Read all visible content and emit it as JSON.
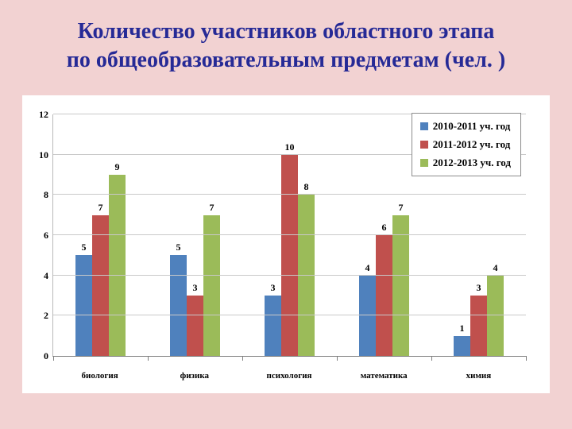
{
  "title": {
    "line1": "Количество участников областного этапа",
    "line2": "по общеобразовательным предметам (чел. )"
  },
  "chart_data": {
    "type": "bar",
    "categories": [
      "биология",
      "физика",
      "психология",
      "математика",
      "химия"
    ],
    "series": [
      {
        "name": "2010-2011 уч. год",
        "color": "#4f81bd",
        "values": [
          5,
          5,
          3,
          4,
          1
        ]
      },
      {
        "name": "2011-2012 уч. год",
        "color": "#c0504d",
        "values": [
          7,
          3,
          10,
          6,
          3
        ]
      },
      {
        "name": "2012-2013 уч. год",
        "color": "#9bbb59",
        "values": [
          9,
          7,
          8,
          7,
          4
        ]
      }
    ],
    "ylim": [
      0,
      12
    ],
    "ytick_step": 2,
    "grid": true,
    "legend_position": "top-right",
    "data_labels": true
  },
  "colors": {
    "page_background": "#f2d2d2",
    "plot_background": "#ffffff",
    "title_text": "#262a96",
    "gridline": "#c9c9c9",
    "axis_line": "#7f7f7f",
    "label_text": "#000000"
  }
}
